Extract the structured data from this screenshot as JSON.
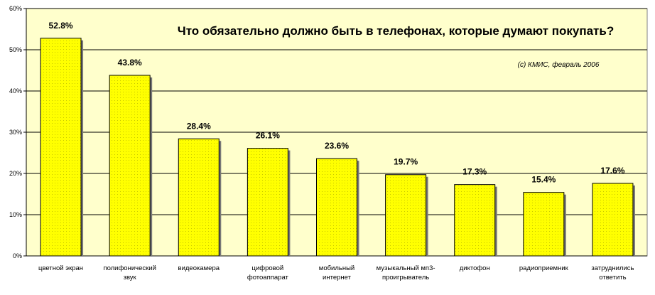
{
  "chart_data": {
    "type": "bar",
    "title": "Что обязательно должно быть в телефонах, которые думают покупать?",
    "source_note": "(с) КМИС, февраль 2006",
    "ylim": [
      0,
      60
    ],
    "yticks": [
      "0%",
      "10%",
      "20%",
      "30%",
      "40%",
      "50%",
      "60%"
    ],
    "categories": [
      [
        "цветной экран"
      ],
      [
        "полифонический",
        "звук"
      ],
      [
        "видеокамера"
      ],
      [
        "цифровой",
        "фотоаппарат"
      ],
      [
        "мобильный",
        "интернет"
      ],
      [
        "музыкальный мп3-",
        "проигрыватель"
      ],
      [
        "диктофон"
      ],
      [
        "радиоприемник"
      ],
      [
        "затруднились",
        "ответить"
      ]
    ],
    "values": [
      52.8,
      43.8,
      28.4,
      26.1,
      23.6,
      19.7,
      17.3,
      15.4,
      17.6
    ],
    "value_labels": [
      "52.8%",
      "43.8%",
      "28.4%",
      "26.1%",
      "23.6%",
      "19.7%",
      "17.3%",
      "15.4%",
      "17.6%"
    ],
    "colors": {
      "plot_bg": "#ffffcc",
      "bar_fill": "#ffff00",
      "bar_dots": "#c8c800",
      "bar_stroke": "#000000",
      "shadow": "#777777",
      "grid": "#000000"
    },
    "grid": true,
    "legend": "none"
  }
}
